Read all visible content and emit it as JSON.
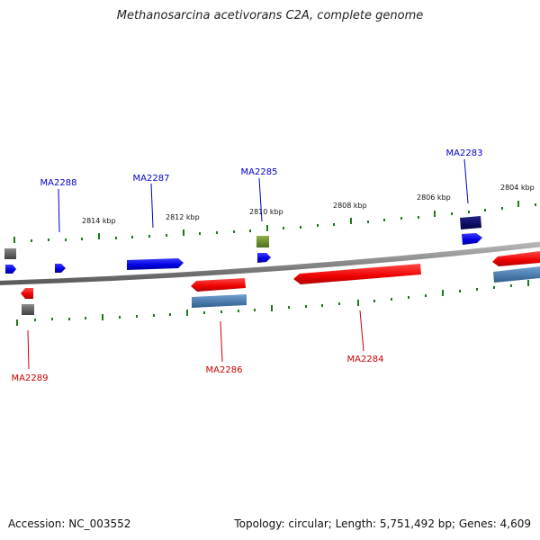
{
  "title": "Methanosarcina acetivorans C2A, complete genome",
  "footer": {
    "accession": "Accession: NC_003552",
    "summary": "Topology: circular; Length: 5,751,492 bp; Genes: 4,609"
  },
  "colors": {
    "forward_label": "#0000cc",
    "reverse_label": "#cc0000",
    "tick": "#1a7a1a",
    "backbone": "#888888"
  },
  "ruler": {
    "unit": "kbp",
    "labels": [
      "2814 kbp",
      "2812 kbp",
      "2810 kbp",
      "2808 kbp",
      "2806 kbp",
      "2804 kbp"
    ]
  },
  "gene_labels": {
    "forward": [
      "MA2288",
      "MA2287",
      "MA2285",
      "MA2283"
    ],
    "reverse": [
      "MA2289",
      "MA2286",
      "MA2284"
    ]
  }
}
